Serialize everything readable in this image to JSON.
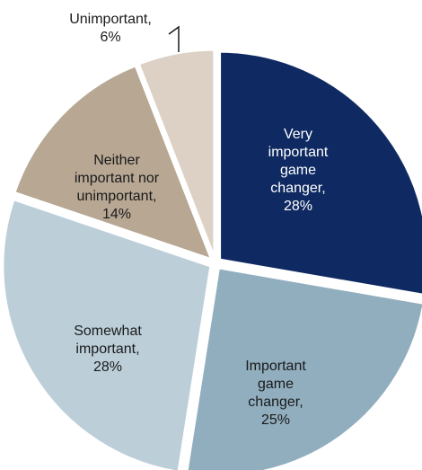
{
  "chart_data": {
    "type": "pie",
    "title": "",
    "start": "12 o'clock",
    "direction": "clockwise",
    "slices": [
      {
        "label_lines": [
          "Very",
          "important",
          "game",
          "changer,",
          "28%"
        ],
        "value": 28,
        "color": "#0f2a62",
        "text_color": "#ffffff"
      },
      {
        "label_lines": [
          "Important",
          "game",
          "changer,",
          "25%"
        ],
        "value": 25,
        "color": "#91aebf",
        "text_color": "#1a1a1a"
      },
      {
        "label_lines": [
          "Somewhat",
          "important,",
          "28%"
        ],
        "value": 28,
        "color": "#bccfd9",
        "text_color": "#1a1a1a"
      },
      {
        "label_lines": [
          "Neither",
          "important nor",
          "unimportant,",
          "14%"
        ],
        "value": 14,
        "color": "#b7a793",
        "text_color": "#1a1a1a"
      },
      {
        "label_lines": [
          "Unimportant,",
          "6%"
        ],
        "value": 6,
        "color": "#dcd1c4",
        "text_color": "#1a1a1a"
      }
    ],
    "colors": {
      "separator": "#ffffff",
      "leader_line": "#1a1a1a"
    }
  }
}
